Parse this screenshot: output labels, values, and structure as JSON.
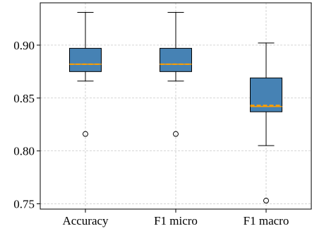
{
  "chart_data": {
    "type": "box",
    "title": "",
    "xlabel": "",
    "ylabel": "",
    "categories": [
      "Accuracy",
      "F1 micro",
      "F1 macro"
    ],
    "ylim": [
      0.745,
      0.94
    ],
    "yticks": [
      0.75,
      0.8,
      0.85,
      0.9
    ],
    "ytick_labels": [
      "0.75",
      "0.80",
      "0.85",
      "0.90"
    ],
    "grid": true,
    "boxes": [
      {
        "category": "Accuracy",
        "whisker_low": 0.866,
        "q1": 0.875,
        "median": 0.882,
        "mean": 0.882,
        "q3": 0.897,
        "whisker_high": 0.931,
        "outliers": [
          0.816
        ]
      },
      {
        "category": "F1 micro",
        "whisker_low": 0.866,
        "q1": 0.875,
        "median": 0.882,
        "mean": 0.882,
        "q3": 0.897,
        "whisker_high": 0.931,
        "outliers": [
          0.816
        ]
      },
      {
        "category": "F1 macro",
        "whisker_low": 0.805,
        "q1": 0.837,
        "median": 0.842,
        "mean": 0.843,
        "q3": 0.869,
        "whisker_high": 0.902,
        "outliers": [
          0.753
        ]
      }
    ],
    "colors": {
      "box_fill": "#4682b4",
      "box_edge": "#000000",
      "mean_line": "#ff9f00",
      "grid": "#c8c8c8"
    }
  }
}
